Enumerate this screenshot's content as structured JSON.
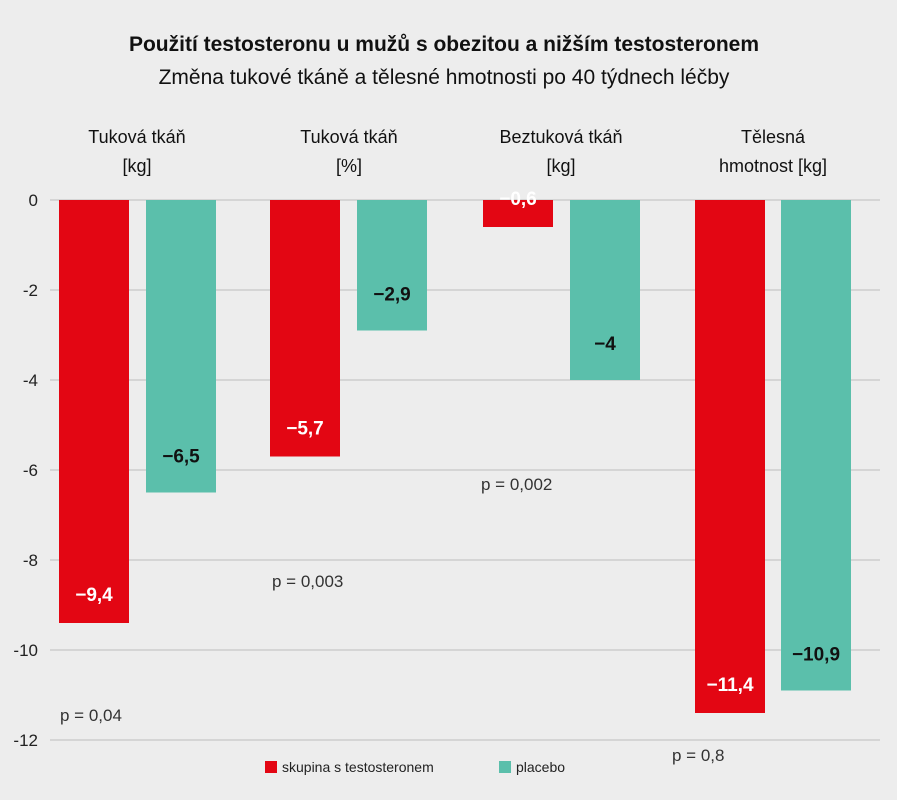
{
  "chart_data": {
    "type": "bar",
    "title": "Použití testosteronu u mužů s obezitou a nižším testosteronem",
    "subtitle": "Změna tukové tkáně a tělesné hmotnosti po 40 týdnech léčby",
    "categories": [
      [
        "Tuková tkáň",
        "[kg]"
      ],
      [
        "Tuková tkáň",
        "[%]"
      ],
      [
        "Beztuková tkáň",
        "[kg]"
      ],
      [
        "Tělesná",
        "hmotnost [kg]"
      ]
    ],
    "series": [
      {
        "name": "skupina s testosteronem",
        "color": "#e30613",
        "values": [
          -9.4,
          -5.7,
          -0.6,
          -11.4
        ],
        "labels": [
          "−9,4",
          "−5,7",
          "−0,6",
          "−11,4"
        ]
      },
      {
        "name": "placebo",
        "color": "#5bbfab",
        "values": [
          -6.5,
          -2.9,
          -4,
          -10.9
        ],
        "labels": [
          "−6,5",
          "−2,9",
          "−4",
          "−10,9"
        ]
      }
    ],
    "p_values": [
      "p = 0,04",
      "p = 0,003",
      "p = 0,002",
      "p = 0,8"
    ],
    "y_ticks": [
      0,
      -2,
      -4,
      -6,
      -8,
      -10,
      -12
    ],
    "y_tick_labels": [
      "0",
      "-2",
      "-4",
      "-6",
      "-8",
      "-10",
      "-12"
    ],
    "ylim": [
      -12,
      0
    ],
    "grid": true,
    "legend_position": "bottom-center"
  }
}
